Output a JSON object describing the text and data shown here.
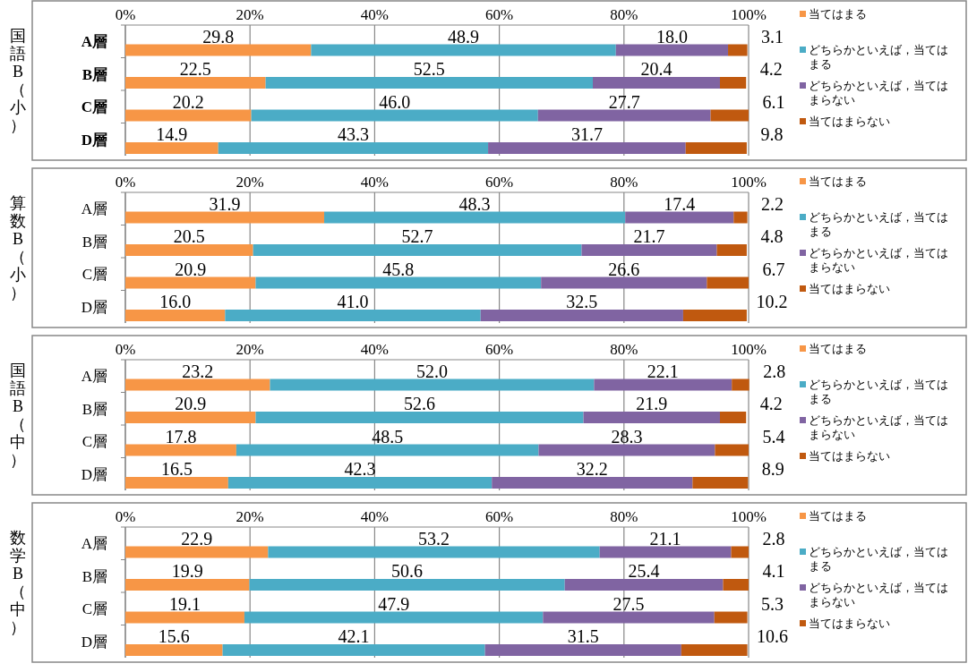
{
  "chart_data": [
    {
      "type": "bar",
      "orientation": "horizontal",
      "stacked": true,
      "title": "国語B（小）",
      "categories": [
        "A層",
        "B層",
        "C層",
        "D層"
      ],
      "series": [
        {
          "name": "当てはまる",
          "color": "#f79646",
          "values": [
            29.8,
            22.5,
            20.2,
            14.9
          ],
          "value_labels": [
            "29.8",
            "22.5",
            "20.2",
            "14.9"
          ]
        },
        {
          "name": "どちらかといえば，当てはまる",
          "color": "#4bacc6",
          "values": [
            48.9,
            52.5,
            46.0,
            43.3
          ],
          "value_labels": [
            "48.9",
            "52.5",
            "46.0",
            "43.3"
          ]
        },
        {
          "name": "どちらかといえば，当てはまらない",
          "color": "#8064a2",
          "values": [
            18.0,
            20.4,
            27.7,
            31.7
          ],
          "value_labels": [
            "18.0",
            "20.4",
            "27.7",
            "31.7"
          ]
        },
        {
          "name": "当てはまらない",
          "color": "#c0590f",
          "values": [
            3.1,
            4.2,
            6.1,
            9.8
          ],
          "value_labels": [
            "3.1",
            "4.2",
            "6.1",
            "9.8"
          ]
        }
      ],
      "xlim": [
        0,
        100
      ],
      "xticks": [
        {
          "value": 0,
          "label": "0%"
        },
        {
          "value": 20,
          "label": "20%"
        },
        {
          "value": 40,
          "label": "40%"
        },
        {
          "value": 60,
          "label": "60%"
        },
        {
          "value": 80,
          "label": "80%"
        },
        {
          "value": 100,
          "label": "100%"
        }
      ],
      "grid": "x",
      "legend": "right"
    },
    {
      "type": "bar",
      "orientation": "horizontal",
      "stacked": true,
      "title": "算数B（小）",
      "categories": [
        "A層",
        "B層",
        "C層",
        "D層"
      ],
      "series": [
        {
          "name": "当てはまる",
          "color": "#f79646",
          "values": [
            31.9,
            20.5,
            20.9,
            16.0
          ],
          "value_labels": [
            "31.9",
            "20.5",
            "20.9",
            "16.0"
          ]
        },
        {
          "name": "どちらかといえば，当てはまる",
          "color": "#4bacc6",
          "values": [
            48.3,
            52.7,
            45.8,
            41.0
          ],
          "value_labels": [
            "48.3",
            "52.7",
            "45.8",
            "41.0"
          ]
        },
        {
          "name": "どちらかといえば，当てはまらない",
          "color": "#8064a2",
          "values": [
            17.4,
            21.7,
            26.6,
            32.5
          ],
          "value_labels": [
            "17.4",
            "21.7",
            "26.6",
            "32.5"
          ]
        },
        {
          "name": "当てはまらない",
          "color": "#c0590f",
          "values": [
            2.2,
            4.8,
            6.7,
            10.2
          ],
          "value_labels": [
            "2.2",
            "4.8",
            "6.7",
            "10.2"
          ]
        }
      ],
      "xlim": [
        0,
        100
      ],
      "xticks": [
        {
          "value": 0,
          "label": "0%"
        },
        {
          "value": 20,
          "label": "20%"
        },
        {
          "value": 40,
          "label": "40%"
        },
        {
          "value": 60,
          "label": "60%"
        },
        {
          "value": 80,
          "label": "80%"
        },
        {
          "value": 100,
          "label": "100%"
        }
      ],
      "grid": "x",
      "legend": "right"
    },
    {
      "type": "bar",
      "orientation": "horizontal",
      "stacked": true,
      "title": "国語B（中）",
      "categories": [
        "A層",
        "B層",
        "C層",
        "D層"
      ],
      "series": [
        {
          "name": "当てはまる",
          "color": "#f79646",
          "values": [
            23.2,
            20.9,
            17.8,
            16.5
          ],
          "value_labels": [
            "23.2",
            "20.9",
            "17.8",
            "16.5"
          ]
        },
        {
          "name": "どちらかといえば，当てはまる",
          "color": "#4bacc6",
          "values": [
            52.0,
            52.6,
            48.5,
            42.3
          ],
          "value_labels": [
            "52.0",
            "52.6",
            "48.5",
            "42.3"
          ]
        },
        {
          "name": "どちらかといえば，当てはまらない",
          "color": "#8064a2",
          "values": [
            22.1,
            21.9,
            28.3,
            32.2
          ],
          "value_labels": [
            "22.1",
            "21.9",
            "28.3",
            "32.2"
          ]
        },
        {
          "name": "当てはまらない",
          "color": "#c0590f",
          "values": [
            2.8,
            4.2,
            5.4,
            8.9
          ],
          "value_labels": [
            "2.8",
            "4.2",
            "5.4",
            "8.9"
          ]
        }
      ],
      "xlim": [
        0,
        100
      ],
      "xticks": [
        {
          "value": 0,
          "label": "0%"
        },
        {
          "value": 20,
          "label": "20%"
        },
        {
          "value": 40,
          "label": "40%"
        },
        {
          "value": 60,
          "label": "60%"
        },
        {
          "value": 80,
          "label": "80%"
        },
        {
          "value": 100,
          "label": "100%"
        }
      ],
      "grid": "x",
      "legend": "right"
    },
    {
      "type": "bar",
      "orientation": "horizontal",
      "stacked": true,
      "title": "数学B（中）",
      "categories": [
        "A層",
        "B層",
        "C層",
        "D層"
      ],
      "series": [
        {
          "name": "当てはまる",
          "color": "#f79646",
          "values": [
            22.9,
            19.9,
            19.1,
            15.6
          ],
          "value_labels": [
            "22.9",
            "19.9",
            "19.1",
            "15.6"
          ]
        },
        {
          "name": "どちらかといえば，当てはまる",
          "color": "#4bacc6",
          "values": [
            53.2,
            50.6,
            47.9,
            42.1
          ],
          "value_labels": [
            "53.2",
            "50.6",
            "47.9",
            "42.1"
          ]
        },
        {
          "name": "どちらかといえば，当てはまらない",
          "color": "#8064a2",
          "values": [
            21.1,
            25.4,
            27.5,
            31.5
          ],
          "value_labels": [
            "21.1",
            "25.4",
            "27.5",
            "31.5"
          ]
        },
        {
          "name": "当てはまらない",
          "color": "#c0590f",
          "values": [
            2.8,
            4.1,
            5.3,
            10.6
          ],
          "value_labels": [
            "2.8",
            "4.1",
            "5.3",
            "10.6"
          ]
        }
      ],
      "xlim": [
        0,
        100
      ],
      "xticks": [
        {
          "value": 0,
          "label": "0%"
        },
        {
          "value": 20,
          "label": "20%"
        },
        {
          "value": 40,
          "label": "40%"
        },
        {
          "value": 60,
          "label": "60%"
        },
        {
          "value": 80,
          "label": "80%"
        },
        {
          "value": 100,
          "label": "100%"
        }
      ],
      "grid": "x",
      "legend": "right"
    }
  ]
}
